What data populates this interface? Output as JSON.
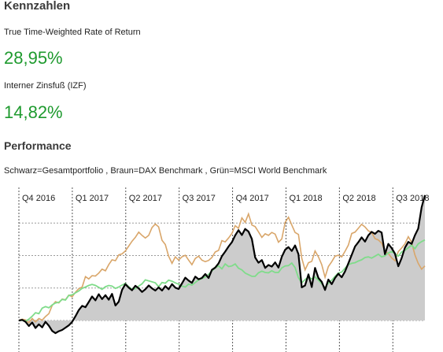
{
  "kennzahlen": {
    "heading": "Kennzahlen",
    "ttwr_label": "True Time-Weighted Rate of Return",
    "ttwr_value": "28,95%",
    "izf_label": "Interner Zinsfuß (IZF)",
    "izf_value": "14,82%"
  },
  "performance": {
    "heading": "Performance",
    "legend_text": "Schwarz=Gesamtportfolio , Braun=DAX Benchmark , Grün=MSCI World Benchmark"
  },
  "colors": {
    "value_green": "#1e9a2e",
    "portfolio": "#000000",
    "portfolio_fill": "#cccccc",
    "dax": "#d9a66a",
    "msci": "#7fdc8a"
  },
  "chart_data": {
    "type": "line",
    "quarters": [
      "Q4 2016",
      "Q1 2017",
      "Q2 2017",
      "Q3 2017",
      "Q4 2017",
      "Q1 2018",
      "Q2 2018",
      "Q3 2018"
    ],
    "grid": true,
    "series": [
      {
        "name": "Schwarz=Gesamtportfolio",
        "color": "#000000",
        "filled": true,
        "values": [
          100,
          100.2,
          99.6,
          98.3,
          99.4,
          97.7,
          98.8,
          97.9,
          99.6,
          98.4,
          96.8,
          96.1,
          96.7,
          97.1,
          97.8,
          98.5,
          99.6,
          101.3,
          103.2,
          104.5,
          104.1,
          105.7,
          107.4,
          106.2,
          108.1,
          106.6,
          107.8,
          106.4,
          108.2,
          104.6,
          105.8,
          109.4,
          111.2,
          110.1,
          109.3,
          110.7,
          109.9,
          108.8,
          109.6,
          110.8,
          109.9,
          109.2,
          110.2,
          109.2,
          110.6,
          109.6,
          111.2,
          110.1,
          109.7,
          111.4,
          113.2,
          112.3,
          111.6,
          113.5,
          112.7,
          113.1,
          114.3,
          113.1,
          115.6,
          116.3,
          117.6,
          119.8,
          121.2,
          122.8,
          124.1,
          126.2,
          127.8,
          126.3,
          128.2,
          127.4,
          125.1,
          119.4,
          117.8,
          118.6,
          116.2,
          117.1,
          116.6,
          117.9,
          116.3,
          119.6,
          121.8,
          122.6,
          121.4,
          123.1,
          120.4,
          110.2,
          110.8,
          114.2,
          110.3,
          116.2,
          113.1,
          111.9,
          109.4,
          112.6,
          111.2,
          113.1,
          114.4,
          113.3,
          115.1,
          117.6,
          120.2,
          122.8,
          124.1,
          125.6,
          124.3,
          126.2,
          127.3,
          126.7,
          127.6,
          127.1,
          120.4,
          123.6,
          122.3,
          120.6,
          116.7,
          119.2,
          122.4,
          124.2,
          123.6,
          126.2,
          128.3,
          134.8,
          138.6
        ]
      },
      {
        "name": "Braun=DAX Benchmark",
        "color": "#d9a66a",
        "values": [
          100,
          100.4,
          100.2,
          99.3,
          100.6,
          99.6,
          100.6,
          100.1,
          101.2,
          102.1,
          104.6,
          105.8,
          105.4,
          106.6,
          106.4,
          107.8,
          107.3,
          108.7,
          109.8,
          110.3,
          113.5,
          112.8,
          113.8,
          113.7,
          114.6,
          115.8,
          115.3,
          117.2,
          118.7,
          118.4,
          120.2,
          120.5,
          121.4,
          122.9,
          124.4,
          125.6,
          127.2,
          126.2,
          125.4,
          126.2,
          128.6,
          129.7,
          128.8,
          124.7,
          123.4,
          119.8,
          117.6,
          119.6,
          118.6,
          119.6,
          120.1,
          118.6,
          117.2,
          119.1,
          119.8,
          118.6,
          118.1,
          118.5,
          119.4,
          121.1,
          121.6,
          124.6,
          124.2,
          125.4,
          126.8,
          129.2,
          128.4,
          131.6,
          130.2,
          132.8,
          129.4,
          128.9,
          127.3,
          125.6,
          126.7,
          126.2,
          127.1,
          126.6,
          124.1,
          125.1,
          130.2,
          131.8,
          129.4,
          127.1,
          126.5,
          119.2,
          115.6,
          117.8,
          118.2,
          121.4,
          119.6,
          117.2,
          113.3,
          116.6,
          118.1,
          119.8,
          120.1,
          119.6,
          121.3,
          123.2,
          126.8,
          127.2,
          128.4,
          129.6,
          128.8,
          127.6,
          127.1,
          125.2,
          124.8,
          123.8,
          121.4,
          120.6,
          119.3,
          118.4,
          121.2,
          122.3,
          123.6,
          125.8,
          124.1,
          120.2,
          117.6,
          115.8,
          116.8
        ]
      },
      {
        "name": "Grün=MSCI World Benchmark",
        "color": "#7fdc8a",
        "values": [
          100,
          100.1,
          99.8,
          100.4,
          101.3,
          102.4,
          102.1,
          103.8,
          104.3,
          103.9,
          104.8,
          105.4,
          105.6,
          106.5,
          106.3,
          107.7,
          107.9,
          108.5,
          109.1,
          109.9,
          110.3,
          110.8,
          111.1,
          110.8,
          110.2,
          109.6,
          110.4,
          110.8,
          110.6,
          109.9,
          110.3,
          110.9,
          111.4,
          110.4,
          109.6,
          109.8,
          110.6,
          111.3,
          112.5,
          112.2,
          111.9,
          111.6,
          110.4,
          111.7,
          111.5,
          112.4,
          112.1,
          111.6,
          111.2,
          110.6,
          110.3,
          111.2,
          110.9,
          111.7,
          112.5,
          112.9,
          113.4,
          114.2,
          115.3,
          116.2,
          116.8,
          115.9,
          117.4,
          116.6,
          116.8,
          117.4,
          116.1,
          115.6,
          114.6,
          114.1,
          113.6,
          113.6,
          114.7,
          115.2,
          114.8,
          114.7,
          115.3,
          114.8,
          114.8,
          116.2,
          116.8,
          116.9,
          117.7,
          116.3,
          113.2,
          111.6,
          112.6,
          113.4,
          112.8,
          113.4,
          112.4,
          111.3,
          110.1,
          111.5,
          112.4,
          113.6,
          114.6,
          114.9,
          116.1,
          117.2,
          117.6,
          117.8,
          118.3,
          118.7,
          119.4,
          119.6,
          119.2,
          119.8,
          120.4,
          119.6,
          119.9,
          120.8,
          121.2,
          120.6,
          119.8,
          121.1,
          121.6,
          122.4,
          123.2,
          122.1,
          123.6,
          124.3,
          124.8
        ]
      }
    ]
  }
}
